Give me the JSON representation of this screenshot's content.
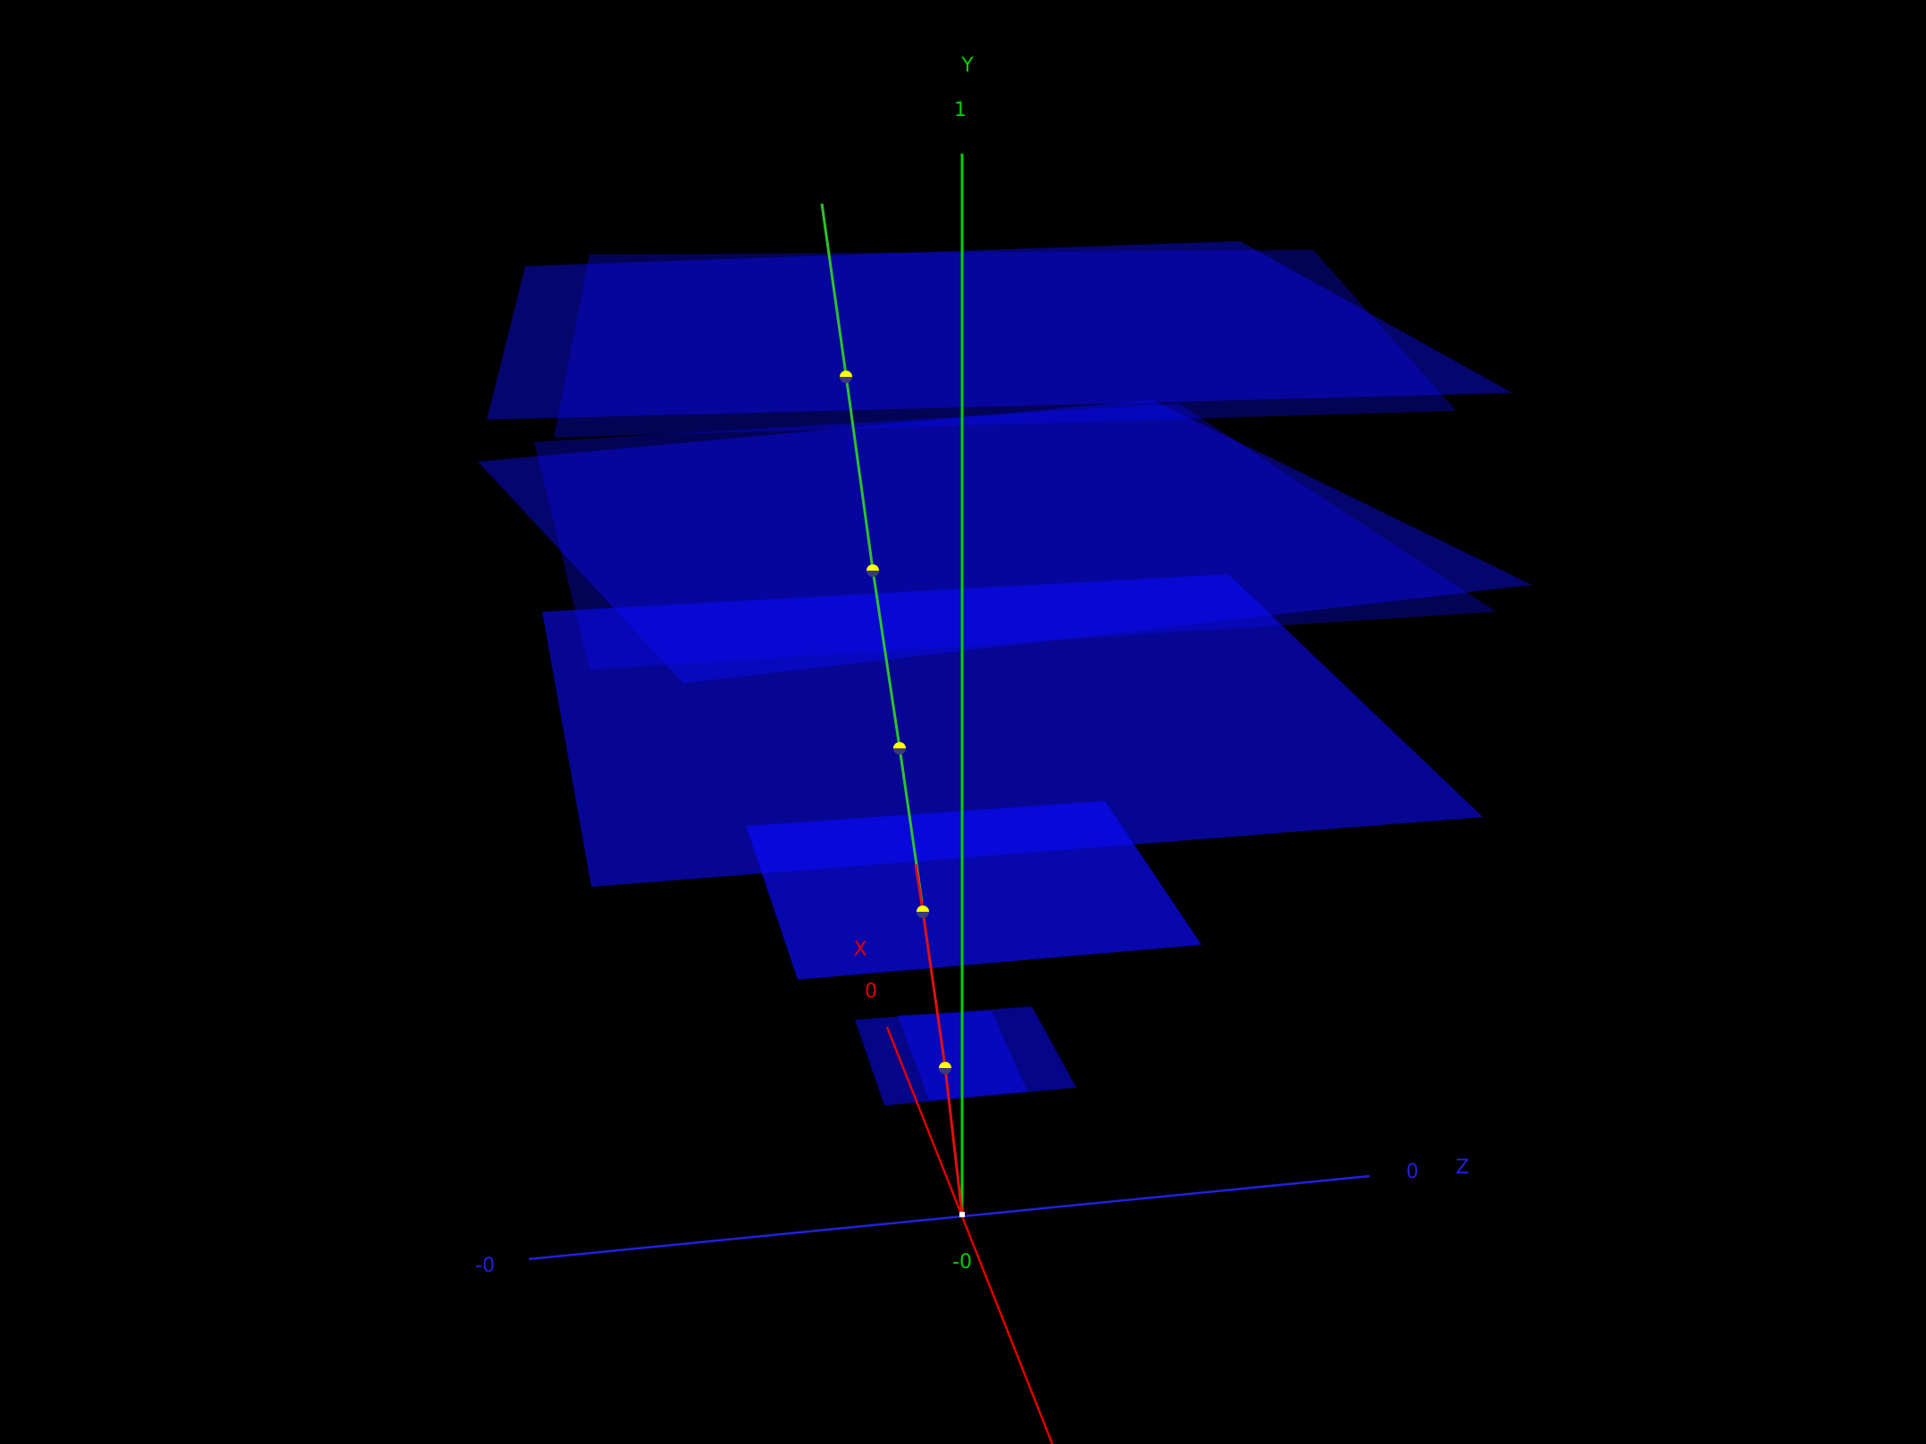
{
  "viewer": {
    "background": "#000000",
    "axes": {
      "x": {
        "name": "X",
        "tick": "0",
        "color": "#e00000"
      },
      "y": {
        "name": "Y",
        "tick_top": "1",
        "tick_bottom": "-0",
        "color": "#00d000"
      },
      "z": {
        "name": "Z",
        "tick_pos": "0",
        "tick_neg": "-0",
        "color": "#2020e0"
      }
    },
    "plane_color": "#0a0af5",
    "polyline_colors": {
      "upper": "#2fc02f",
      "lower": "#e01010"
    },
    "marker_color": "#ffff00",
    "slices": [
      {
        "id": "slice-1",
        "level": 1
      },
      {
        "id": "slice-2",
        "level": 2
      },
      {
        "id": "slice-3",
        "level": 3
      },
      {
        "id": "slice-4",
        "level": 4
      },
      {
        "id": "slice-5",
        "level": 5
      }
    ],
    "markers_count_label": "5"
  }
}
